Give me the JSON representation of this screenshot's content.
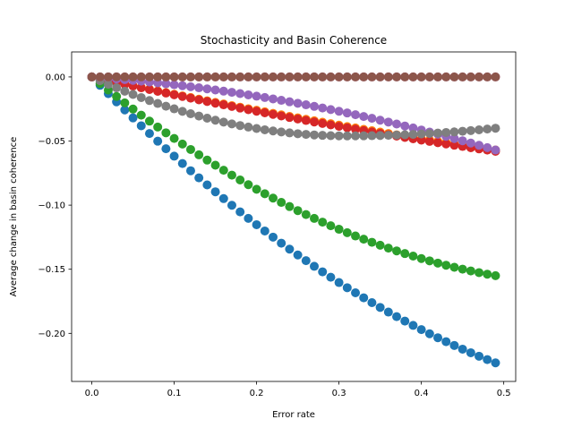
{
  "chart_data": {
    "type": "scatter",
    "title": "Stochasticity and Basin Coherence",
    "xlabel": "Error rate",
    "ylabel": "Average change in basin coherence",
    "xlim": [
      -0.0245,
      0.5145
    ],
    "ylim": [
      -0.2375,
      0.0195
    ],
    "xticks": [
      0.0,
      0.1,
      0.2,
      0.3,
      0.4,
      0.5
    ],
    "xtick_labels": [
      "0.0",
      "0.1",
      "0.2",
      "0.3",
      "0.4",
      "0.5"
    ],
    "yticks": [
      0.0,
      -0.05,
      -0.1,
      -0.15,
      -0.2
    ],
    "ytick_labels": [
      "0.00",
      "−0.05",
      "−0.10",
      "−0.15",
      "−0.20"
    ],
    "grid": false,
    "legend": "none",
    "x": {
      "start": 0.0,
      "step": 0.01,
      "count": 50
    },
    "series": [
      {
        "color": "#1f77b4",
        "end": -0.223,
        "curve": 0.45
      },
      {
        "color": "#ff7f0e",
        "end": -0.057,
        "curve": 0.2
      },
      {
        "color": "#2ca02c",
        "end": -0.155,
        "curve": 0.65
      },
      {
        "color": "#d62728",
        "end": -0.058,
        "curve": 0.22
      },
      {
        "color": "#9467bd",
        "end": -0.057,
        "curve": -0.6
      },
      {
        "color": "#7f7f7f",
        "shape": "dip",
        "min_x": 0.31,
        "min_y": -0.046,
        "end": -0.04
      },
      {
        "color": "#e377c2",
        "end": 0.0,
        "curve": 0.0
      },
      {
        "color": "#8c564b",
        "end": 0.0,
        "curve": 0.0
      }
    ]
  }
}
